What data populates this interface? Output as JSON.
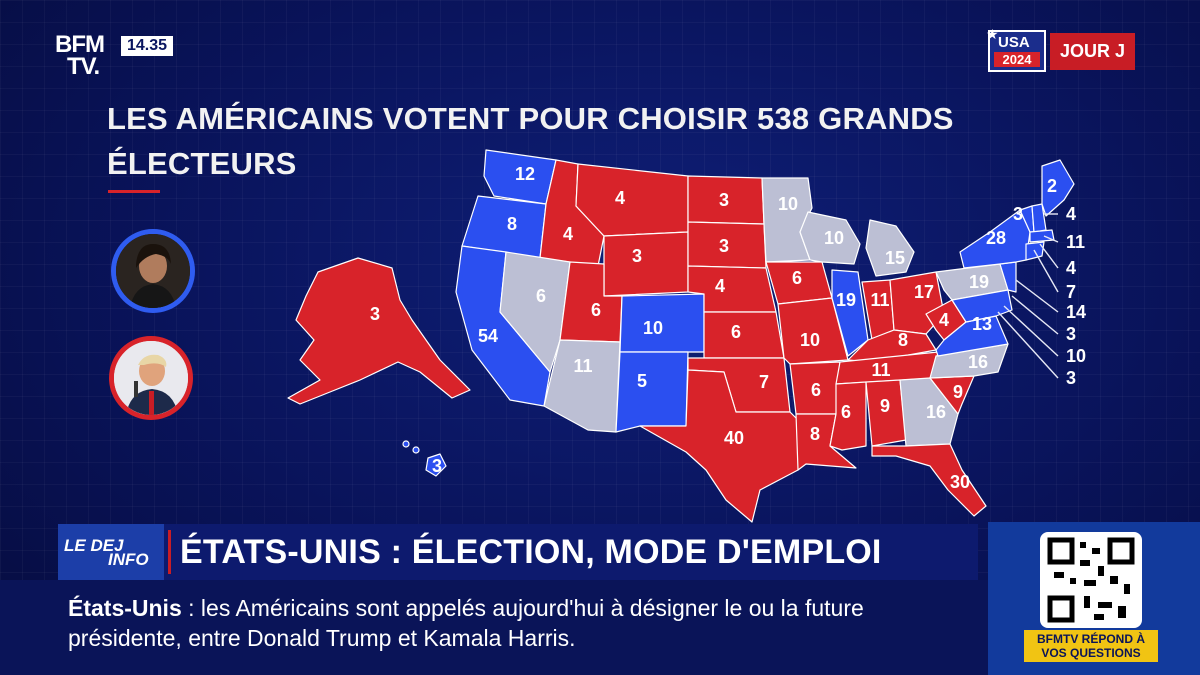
{
  "channel": {
    "logo_line1": "BFM",
    "logo_line2": "TV.",
    "clock": "14.35"
  },
  "badge": {
    "usa": "USA",
    "year": "2024",
    "label": "JOUR J"
  },
  "title": "LES AMÉRICAINS VOTENT POUR CHOISIR 538 GRANDS ÉLECTEURS",
  "colors": {
    "democrat": "#2b4ff0",
    "republican": "#d8232a",
    "undecided": "#bcbfd4",
    "background": "#09135a"
  },
  "candidates": {
    "harris_color": "#2f5cf0",
    "trump_color": "#d8232a"
  },
  "map_values": [
    "12",
    "8",
    "54",
    "6",
    "4",
    "4",
    "3",
    "6",
    "11",
    "10",
    "5",
    "3",
    "3",
    "4",
    "6",
    "40",
    "7",
    "10",
    "10",
    "6",
    "15",
    "19",
    "11",
    "8",
    "6",
    "8",
    "11",
    "6",
    "9",
    "16",
    "17",
    "4",
    "19",
    "13",
    "16",
    "9",
    "30",
    "28",
    "3",
    "2",
    "3"
  ],
  "east_callouts": [
    "4",
    "11",
    "4",
    "7",
    "14",
    "3",
    "10",
    "3"
  ],
  "banner": {
    "tag_line1": "LE DEJ",
    "tag_line2": "INFO",
    "headline": "ÉTATS-UNIS : ÉLECTION, MODE D'EMPLOI"
  },
  "ticker": {
    "lead": "États-Unis",
    "sep": " : ",
    "text": "les Américains sont appelés aujourd'hui à désigner le ou la future présidente, entre Donald Trump et Kamala Harris."
  },
  "qr_caption": "BFMTV RÉPOND À VOS QUESTIONS"
}
